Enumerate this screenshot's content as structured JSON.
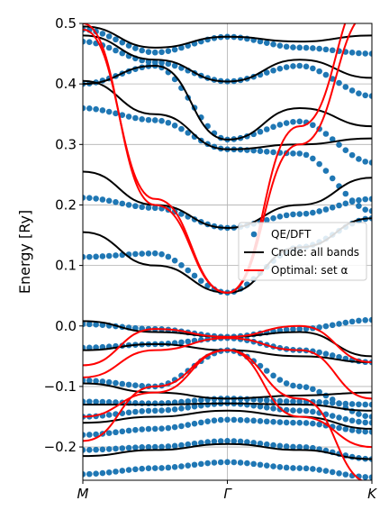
{
  "chart_data": {
    "type": "line",
    "ylabel": "Energy [Ry]",
    "ylim": [
      -0.255,
      0.5
    ],
    "x_ticks": [
      {
        "pos": 0,
        "label": "M"
      },
      {
        "pos": 1,
        "label": "Γ"
      },
      {
        "pos": 2,
        "label": "K"
      }
    ],
    "y_ticks": [
      -0.2,
      -0.1,
      0.0,
      0.1,
      0.2,
      0.3,
      0.4,
      0.5
    ],
    "y_tick_labels": [
      "−0.2",
      "−0.1",
      "0.0",
      "0.1",
      "0.2",
      "0.3",
      "0.4",
      "0.5"
    ],
    "grid": true,
    "legend_position": "center-right",
    "colors": {
      "dft": "#1f77b4",
      "crude": "#000000",
      "optimal": "#ff0000"
    },
    "series": [
      {
        "name": "QE/DFT",
        "style": "markers",
        "bands": [
          {
            "x": [
              0,
              0.5,
              1,
              1.5,
              2
            ],
            "y": [
              0.114,
              0.12,
              0.055,
              0.13,
              0.178
            ]
          },
          {
            "x": [
              0,
              0.5,
              1,
              1.5,
              2
            ],
            "y": [
              0.212,
              0.195,
              0.162,
              0.185,
              0.21
            ]
          },
          {
            "x": [
              0,
              0.5,
              1,
              1.5,
              2
            ],
            "y": [
              0.36,
              0.34,
              0.292,
              0.285,
              0.19
            ]
          },
          {
            "x": [
              0,
              0.5,
              1,
              1.5,
              2
            ],
            "y": [
              0.4,
              0.43,
              0.308,
              0.338,
              0.27
            ]
          },
          {
            "x": [
              0,
              0.5,
              1,
              1.5,
              2
            ],
            "y": [
              0.47,
              0.436,
              0.404,
              0.43,
              0.38
            ]
          },
          {
            "x": [
              0,
              0.5,
              1,
              1.5,
              2
            ],
            "y": [
              0.49,
              0.452,
              0.478,
              0.46,
              0.45
            ]
          },
          {
            "x": [
              0,
              0.5,
              1,
              1.5,
              2
            ],
            "y": [
              -0.036,
              -0.03,
              -0.02,
              -0.04,
              -0.06
            ]
          },
          {
            "x": [
              0,
              0.5,
              1,
              1.5,
              2
            ],
            "y": [
              0.003,
              -0.005,
              -0.018,
              -0.005,
              0.01
            ]
          },
          {
            "x": [
              0,
              0.5,
              1,
              1.5,
              2
            ],
            "y": [
              -0.09,
              -0.1,
              -0.04,
              -0.1,
              -0.15
            ]
          },
          {
            "x": [
              0,
              0.5,
              1,
              1.5,
              2
            ],
            "y": [
              -0.125,
              -0.128,
              -0.12,
              -0.125,
              -0.13
            ]
          },
          {
            "x": [
              0,
              0.5,
              1,
              1.5,
              2
            ],
            "y": [
              -0.15,
              -0.14,
              -0.128,
              -0.14,
              -0.16
            ]
          },
          {
            "x": [
              0,
              0.5,
              1,
              1.5,
              2
            ],
            "y": [
              -0.18,
              -0.17,
              -0.155,
              -0.16,
              -0.175
            ]
          },
          {
            "x": [
              0,
              0.5,
              1,
              1.5,
              2
            ],
            "y": [
              -0.205,
              -0.2,
              -0.19,
              -0.2,
              -0.22
            ]
          },
          {
            "x": [
              0,
              0.5,
              1,
              1.5,
              2
            ],
            "y": [
              -0.245,
              -0.235,
              -0.225,
              -0.235,
              -0.25
            ]
          }
        ]
      },
      {
        "name": "Crude: all bands",
        "style": "line",
        "bands": [
          {
            "x": [
              0,
              0.5,
              1,
              1.5,
              2
            ],
            "y": [
              0.155,
              0.1,
              0.055,
              0.13,
              0.178
            ]
          },
          {
            "x": [
              0,
              0.5,
              1,
              1.5,
              2
            ],
            "y": [
              0.255,
              0.2,
              0.162,
              0.2,
              0.245
            ]
          },
          {
            "x": [
              0,
              0.5,
              1,
              1.5,
              2
            ],
            "y": [
              0.405,
              0.35,
              0.292,
              0.3,
              0.31
            ]
          },
          {
            "x": [
              0,
              0.5,
              1,
              1.5,
              2
            ],
            "y": [
              0.4,
              0.43,
              0.308,
              0.36,
              0.33
            ]
          },
          {
            "x": [
              0,
              0.5,
              1,
              1.5,
              2
            ],
            "y": [
              0.48,
              0.44,
              0.404,
              0.44,
              0.41
            ]
          },
          {
            "x": [
              0,
              0.5,
              1,
              1.5,
              2
            ],
            "y": [
              0.495,
              0.46,
              0.478,
              0.47,
              0.48
            ]
          },
          {
            "x": [
              0,
              0.5,
              1,
              1.5,
              2
            ],
            "y": [
              0.008,
              -0.01,
              -0.018,
              -0.01,
              -0.05
            ]
          },
          {
            "x": [
              0,
              0.5,
              1,
              1.5,
              2
            ],
            "y": [
              -0.04,
              -0.03,
              -0.04,
              -0.05,
              -0.06
            ]
          },
          {
            "x": [
              0,
              0.5,
              1,
              1.5,
              2
            ],
            "y": [
              -0.095,
              -0.11,
              -0.12,
              -0.115,
              -0.11
            ]
          },
          {
            "x": [
              0,
              0.5,
              1,
              1.5,
              2
            ],
            "y": [
              -0.13,
              -0.13,
              -0.128,
              -0.13,
              -0.14
            ]
          },
          {
            "x": [
              0,
              0.5,
              1,
              1.5,
              2
            ],
            "y": [
              -0.16,
              -0.15,
              -0.14,
              -0.15,
              -0.17
            ]
          },
          {
            "x": [
              0,
              0.5,
              1,
              1.5,
              2
            ],
            "y": [
              -0.215,
              -0.205,
              -0.195,
              -0.205,
              -0.22
            ]
          }
        ]
      },
      {
        "name": "Optimal: set α",
        "style": "line",
        "bands": [
          {
            "x": [
              0,
              0.5,
              1,
              1.5,
              2
            ],
            "y": [
              0.5,
              0.2,
              0.055,
              0.3,
              0.52
            ]
          },
          {
            "x": [
              0,
              0.5,
              1,
              1.5,
              2
            ],
            "y": [
              0.49,
              0.21,
              0.055,
              0.33,
              0.56
            ]
          },
          {
            "x": [
              0,
              0.5,
              1,
              1.5,
              2
            ],
            "y": [
              -0.065,
              -0.005,
              -0.018,
              0.0,
              -0.06
            ]
          },
          {
            "x": [
              0,
              0.5,
              1,
              1.5,
              2
            ],
            "y": [
              -0.085,
              -0.04,
              -0.02,
              -0.04,
              -0.12
            ]
          },
          {
            "x": [
              0,
              0.5,
              1,
              1.5,
              2
            ],
            "y": [
              -0.19,
              -0.1,
              -0.04,
              -0.12,
              -0.26
            ]
          },
          {
            "x": [
              0,
              0.5,
              1,
              1.5,
              2
            ],
            "y": [
              -0.15,
              -0.11,
              -0.04,
              -0.15,
              -0.2
            ]
          }
        ]
      }
    ]
  }
}
